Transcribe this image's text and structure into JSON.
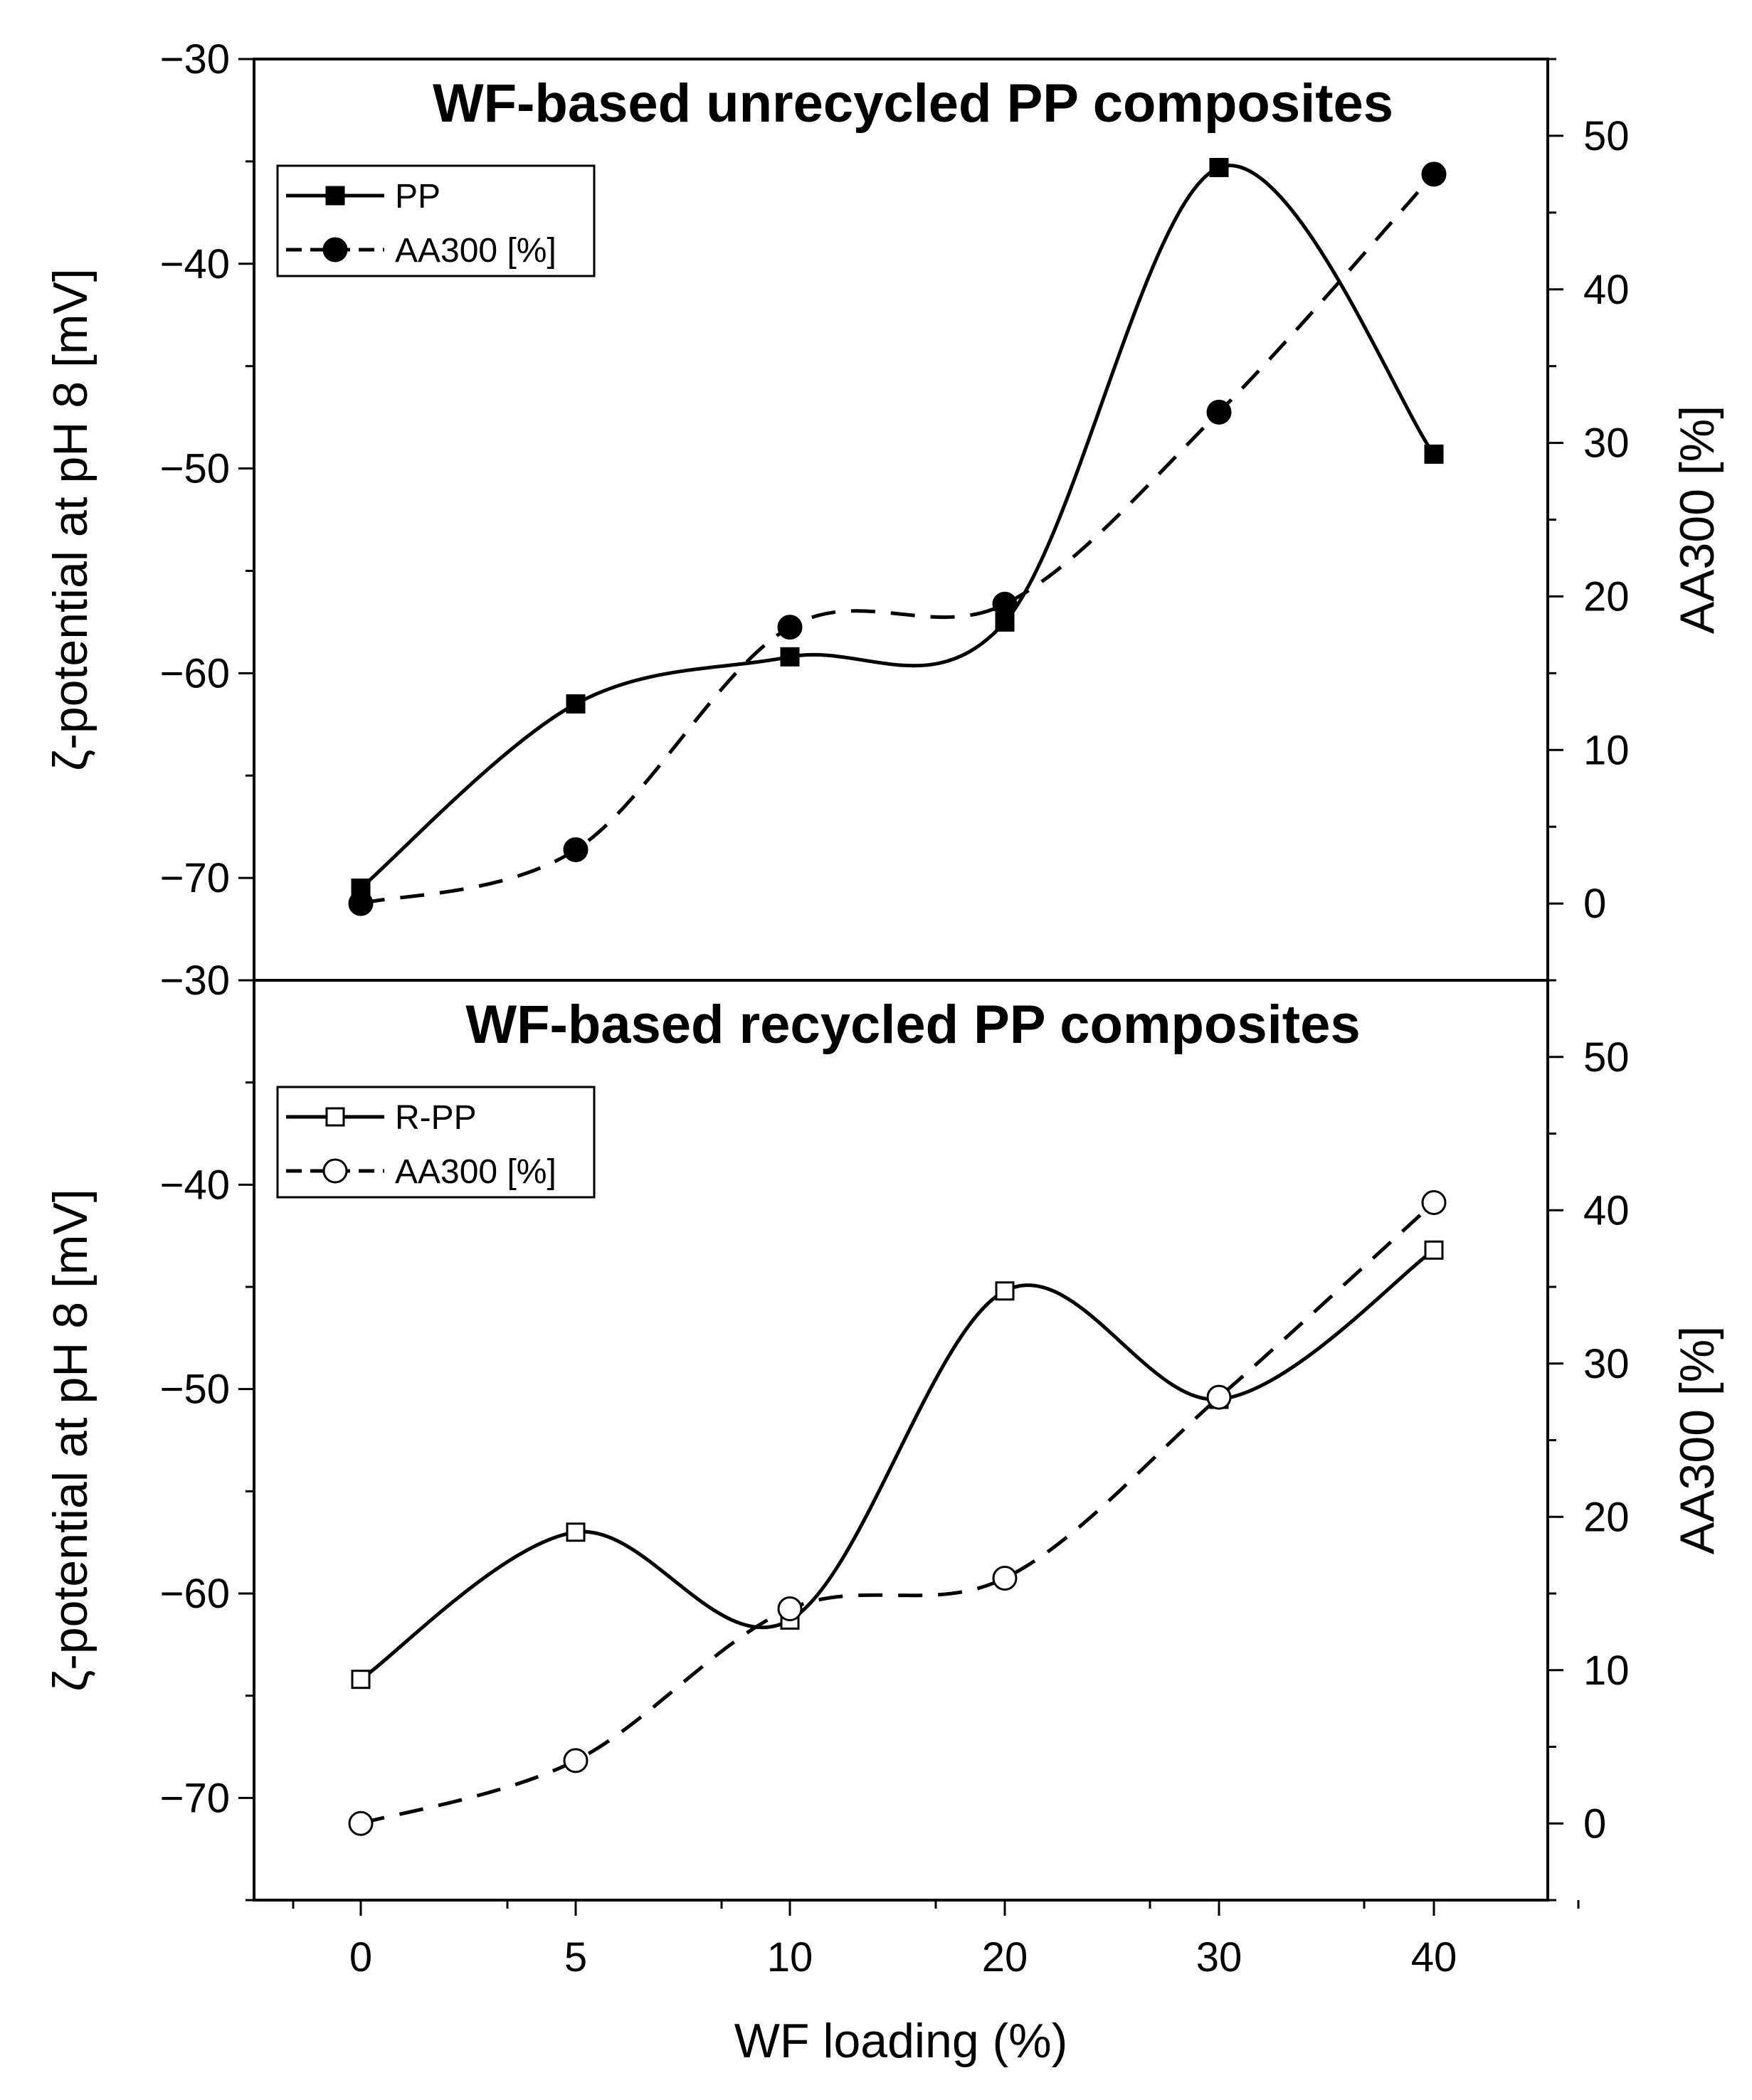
{
  "chart_data": [
    {
      "type": "line",
      "title": "WF-based unrecycled PP composites",
      "xlabel": "",
      "ylabel": "ζ-potential at pH 8 [mV]",
      "y2label": "AA300 [%]",
      "categories": [
        "0",
        "5",
        "10",
        "20",
        "30",
        "40"
      ],
      "ylim": [
        -75,
        -30
      ],
      "y2lim": [
        -5,
        55
      ],
      "yticks": [
        -70,
        -60,
        -50,
        -40,
        -30
      ],
      "yticks_labels": [
        "−70",
        "−60",
        "−50",
        "−40",
        "−30"
      ],
      "y2ticks": [
        0,
        10,
        20,
        30,
        40,
        50
      ],
      "y2ticks_labels": [
        "0",
        "10",
        "20",
        "30",
        "40",
        "50"
      ],
      "bottom_label": "−30",
      "legend_position": "top-left",
      "series": [
        {
          "name": "PP",
          "axis": "left",
          "marker": "filled-square",
          "style": "solid",
          "values": [
            -70.5,
            -61.5,
            -59.2,
            -57.5,
            -35.3,
            -49.3
          ]
        },
        {
          "name": "AA300 [%]",
          "axis": "right",
          "marker": "filled-circle",
          "style": "dashed",
          "values": [
            0,
            3.5,
            18,
            19.5,
            32,
            47.5
          ]
        }
      ]
    },
    {
      "type": "line",
      "title": "WF-based recycled PP composites",
      "xlabel": "WF loading (%)",
      "ylabel": "ζ-potential at pH 8 [mV]",
      "y2label": "AA300 [%]",
      "categories": [
        "0",
        "5",
        "10",
        "20",
        "30",
        "40"
      ],
      "ylim": [
        -75,
        -30
      ],
      "y2lim": [
        -5,
        55
      ],
      "yticks": [
        -70,
        -60,
        -50,
        -40
      ],
      "yticks_labels": [
        "−70",
        "−60",
        "−50",
        "−40"
      ],
      "y2ticks": [
        0,
        10,
        20,
        30,
        40,
        50
      ],
      "y2ticks_labels": [
        "0",
        "10",
        "20",
        "30",
        "40",
        "50"
      ],
      "legend_position": "top-left",
      "series": [
        {
          "name": "R-PP",
          "axis": "left",
          "marker": "open-square",
          "style": "solid",
          "values": [
            -64.2,
            -57.0,
            -61.3,
            -45.2,
            -50.5,
            -43.2
          ]
        },
        {
          "name": "AA300 [%]",
          "axis": "right",
          "marker": "open-circle",
          "style": "dashed",
          "values": [
            0,
            4.1,
            14,
            16,
            27.8,
            40.5
          ]
        }
      ]
    }
  ]
}
